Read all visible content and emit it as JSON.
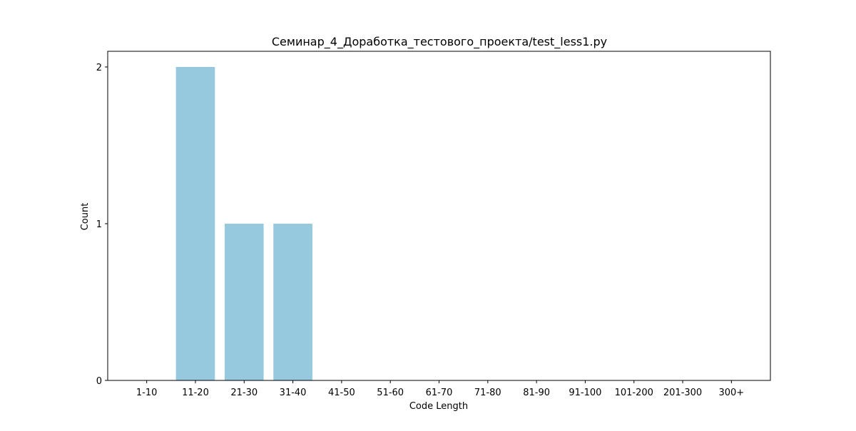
{
  "chart_data": {
    "type": "bar",
    "title": "Семинар_4_Доработка_тестового_проекта/test_less1.py",
    "xlabel": "Code Length",
    "ylabel": "Count",
    "categories": [
      "1-10",
      "11-20",
      "21-30",
      "31-40",
      "41-50",
      "51-60",
      "61-70",
      "71-80",
      "81-90",
      "91-100",
      "101-200",
      "201-300",
      "300+"
    ],
    "values": [
      0,
      2,
      1,
      1,
      0,
      0,
      0,
      0,
      0,
      0,
      0,
      0,
      0
    ],
    "ylim": [
      0,
      2.1
    ],
    "yticks": [
      0,
      1,
      2
    ],
    "grid": false,
    "colors": {
      "bar": "#96c9dd",
      "axes": "#000000"
    }
  }
}
